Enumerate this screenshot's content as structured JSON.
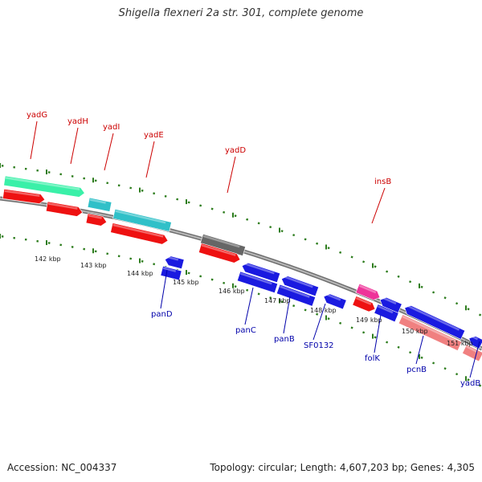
{
  "header": {
    "title": "Shigella flexneri 2a str. 301, complete genome"
  },
  "footer": {
    "accession": "Accession: NC_004337",
    "topology": "Topology: circular; Length: 4,607,203 bp; Genes: 4,305"
  },
  "colors": {
    "backbone": "#8a8a8a",
    "ticks": "#2e7d1e",
    "fwd_label": "#cc0000",
    "rev_label": "#0000aa",
    "cds_red": "#ee1111",
    "cds_blue": "#1a1ae0",
    "teal": "#30c0c8",
    "green": "#3af0a8",
    "gray": "#666666",
    "pink": "#ee3399",
    "salmon": "#f08080"
  },
  "ticks": [
    "142 kbp",
    "143 kbp",
    "144 kbp",
    "145 kbp",
    "146 kbp",
    "147 kbp",
    "148 kbp",
    "149 kbp",
    "150 kbp",
    "151 kbp"
  ],
  "labels": {
    "top": [
      "yadG",
      "yadH",
      "yadI",
      "yadE",
      "yadD",
      "insB"
    ],
    "bottom": [
      "panD",
      "panC",
      "panB",
      "SF0132",
      "folK",
      "pcnB",
      "yadB"
    ]
  }
}
